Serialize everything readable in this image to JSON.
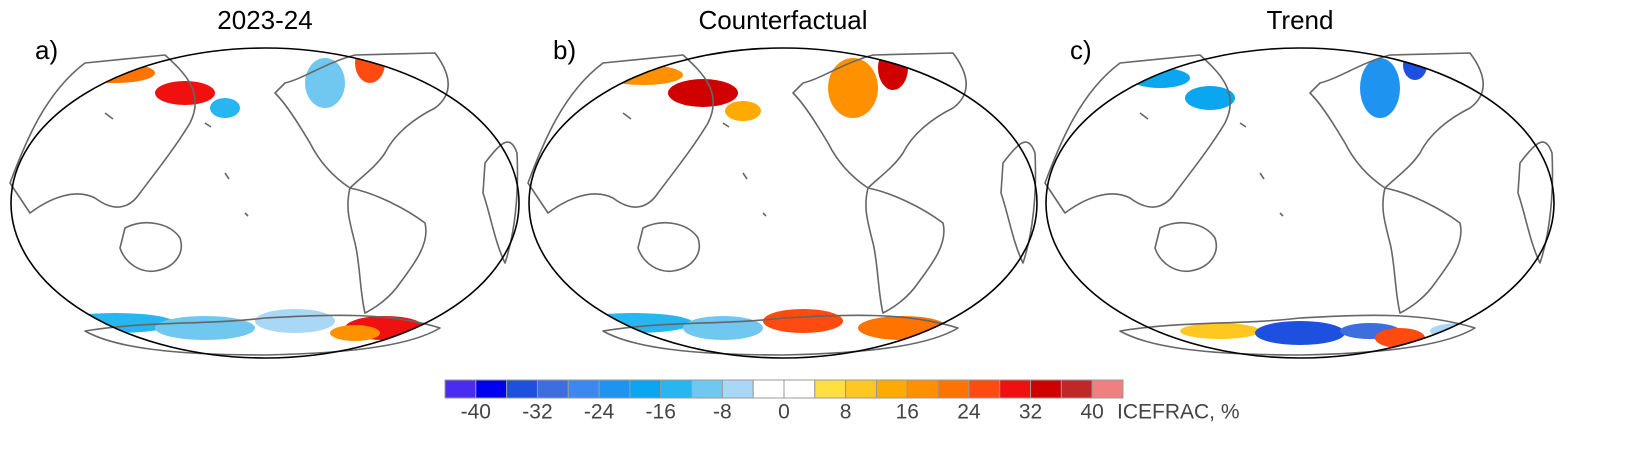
{
  "panels": [
    {
      "label": "a)",
      "title": "2023-24"
    },
    {
      "label": "b)",
      "title": "Counterfactual"
    },
    {
      "label": "c)",
      "title": "Trend"
    }
  ],
  "colorbar": {
    "levels": [
      -44,
      -40,
      -36,
      -32,
      -28,
      -24,
      -20,
      -16,
      -12,
      -8,
      -4,
      0,
      4,
      8,
      12,
      16,
      20,
      24,
      28,
      32,
      36,
      40,
      44
    ],
    "colors": [
      "#4a2cf0",
      "#0000f0",
      "#1e50e0",
      "#3c6ee0",
      "#3c88ee",
      "#1e94f0",
      "#0aa6f0",
      "#28b6f0",
      "#70c8f0",
      "#a8d8f5",
      "#ffffff",
      "#ffffff",
      "#ffe040",
      "#ffc820",
      "#ffaa00",
      "#ff9000",
      "#ff7400",
      "#ff4a10",
      "#f01010",
      "#d00000",
      "#c02828",
      "#f08080"
    ],
    "ticks": [
      -40,
      -32,
      -24,
      -16,
      -8,
      0,
      8,
      16,
      24,
      32,
      40
    ],
    "label": "ICEFRAC, %"
  }
}
